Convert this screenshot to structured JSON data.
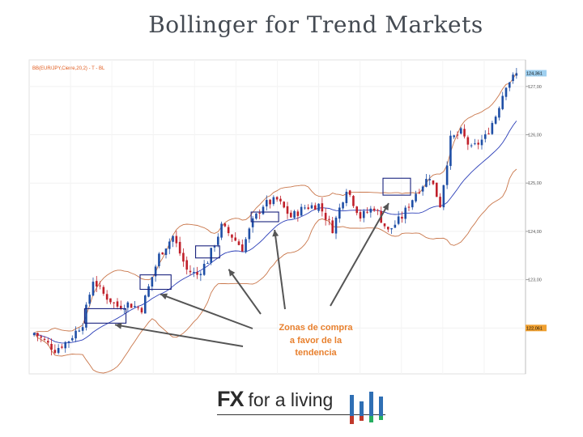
{
  "slide": {
    "title": "Bollinger for Trend Markets"
  },
  "chart_data": {
    "type": "candlestick",
    "header_text": "BB(EUR/JPY,Cierre,20,2) - T - BL",
    "y_ticks": [
      "127,00",
      "126,00",
      "125,00",
      "124,00",
      "123,00",
      "122,00"
    ],
    "y_tick_values": [
      127,
      126,
      125,
      124,
      123,
      122
    ],
    "ylim": [
      121.05,
      127.55
    ],
    "current_price_label": "124,361",
    "lower_price_label": "122,061",
    "annotation": [
      "Zonas de compra",
      "a favor de la",
      "tendencia"
    ],
    "annotation_color": "#e8802e",
    "candle_up_color": "#1f4fa6",
    "candle_down_color": "#c0202a",
    "band_color": "#c9764a",
    "middle_band_color": "#2c3fb8",
    "box_color": "#1a237e",
    "n_candles": 140,
    "path_points": [
      [
        0,
        121.9
      ],
      [
        6,
        121.55
      ],
      [
        10,
        121.75
      ],
      [
        14,
        122.1
      ],
      [
        17,
        123.0
      ],
      [
        20,
        122.7
      ],
      [
        24,
        122.45
      ],
      [
        27,
        122.5
      ],
      [
        31,
        122.4
      ],
      [
        36,
        123.5
      ],
      [
        40,
        123.9
      ],
      [
        44,
        123.2
      ],
      [
        47,
        123.1
      ],
      [
        50,
        123.4
      ],
      [
        54,
        124.1
      ],
      [
        57,
        123.9
      ],
      [
        60,
        123.65
      ],
      [
        63,
        124.2
      ],
      [
        66,
        124.55
      ],
      [
        70,
        124.65
      ],
      [
        74,
        124.3
      ],
      [
        78,
        124.5
      ],
      [
        82,
        124.55
      ],
      [
        86,
        124.05
      ],
      [
        90,
        124.9
      ],
      [
        94,
        124.3
      ],
      [
        98,
        124.5
      ],
      [
        102,
        124.0
      ],
      [
        106,
        124.3
      ],
      [
        110,
        124.8
      ],
      [
        114,
        125.15
      ],
      [
        117,
        124.55
      ],
      [
        120,
        125.9
      ],
      [
        123,
        126.05
      ],
      [
        126,
        125.7
      ],
      [
        130,
        125.95
      ],
      [
        133,
        126.4
      ],
      [
        136,
        127.05
      ],
      [
        139,
        127.25
      ]
    ],
    "buy_zones": [
      [
        [
          15,
          122.1
        ],
        [
          26,
          122.4
        ]
      ],
      [
        [
          31,
          122.8
        ],
        [
          39,
          123.1
        ]
      ],
      [
        [
          47,
          123.45
        ],
        [
          53,
          123.7
        ]
      ],
      [
        [
          63,
          124.2
        ],
        [
          70,
          124.4
        ]
      ],
      [
        [
          101,
          124.75
        ],
        [
          108,
          125.1
        ]
      ]
    ],
    "ohlc_seed": 7
  },
  "logo": {
    "fx": "FX",
    "rest": "for a living"
  }
}
